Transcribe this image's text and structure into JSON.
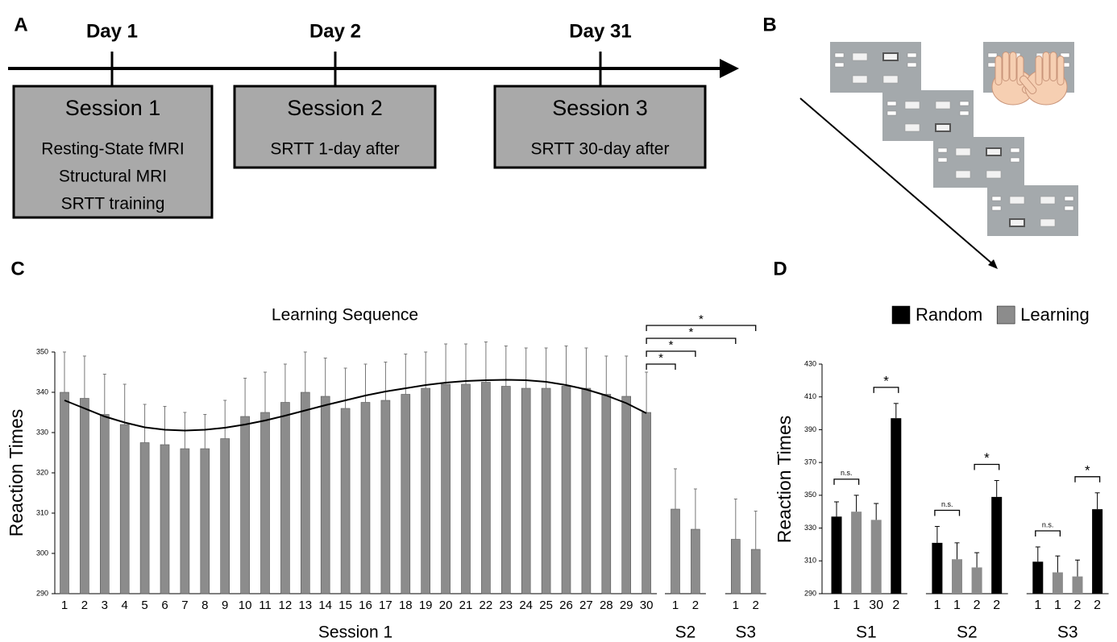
{
  "panel_labels": [
    "A",
    "B",
    "C",
    "D"
  ],
  "timeline": {
    "days": [
      "Day 1",
      "Day 2",
      "Day 31"
    ],
    "sessions": [
      {
        "title": "Session 1",
        "lines": [
          "Resting-State fMRI",
          "Structural MRI",
          "SRTT training"
        ]
      },
      {
        "title": "Session 2",
        "lines": [
          "SRTT 1-day after"
        ]
      },
      {
        "title": "Session 3",
        "lines": [
          "SRTT 30-day after"
        ]
      }
    ]
  },
  "chart_data": [
    {
      "type": "bar",
      "title": "Learning Sequence",
      "y_label": "Reaction Times",
      "categories": [
        "1",
        "2",
        "3",
        "4",
        "5",
        "6",
        "7",
        "8",
        "9",
        "10",
        "11",
        "12",
        "13",
        "14",
        "15",
        "16",
        "17",
        "18",
        "19",
        "20",
        "21",
        "22",
        "23",
        "24",
        "25",
        "26",
        "27",
        "28",
        "29",
        "30",
        "1",
        "2",
        "1",
        "2"
      ],
      "groups": [
        "Session 1",
        "S2",
        "S3"
      ],
      "values": [
        340,
        338.5,
        334.5,
        332,
        327.5,
        327,
        326,
        326,
        328.5,
        334,
        335,
        337.5,
        340,
        339,
        336,
        337.5,
        338,
        339.5,
        341,
        342,
        342,
        342.5,
        341.5,
        341,
        341,
        341.5,
        341,
        339.5,
        339,
        335,
        311,
        306,
        303.5,
        301
      ],
      "errors": [
        10,
        10.5,
        10,
        10,
        9.5,
        9.5,
        9,
        8.5,
        9.5,
        9.5,
        10,
        9.5,
        10,
        9.5,
        10,
        9.5,
        9.5,
        10,
        9,
        10,
        10,
        10,
        10,
        10,
        10,
        10,
        10,
        9.5,
        10,
        10,
        10,
        10,
        10,
        9.5
      ],
      "trend": [
        338,
        336,
        334,
        332.5,
        331.3,
        330.7,
        330.5,
        330.7,
        331.2,
        332,
        333,
        334.2,
        335.5,
        336.8,
        338,
        339.2,
        340.2,
        341,
        341.8,
        342.4,
        342.8,
        343,
        343.1,
        343,
        342.6,
        341.8,
        340.7,
        339.2,
        337.3,
        334.8
      ],
      "color": "#8c8c8c",
      "significance_labels": [
        "*",
        "*",
        "*",
        "*"
      ],
      "ylim": [
        290,
        350
      ],
      "yticks": [
        290,
        300,
        310,
        320,
        330,
        340,
        350
      ],
      "grid": false
    },
    {
      "type": "grouped-bar",
      "y_label": "Reaction Times",
      "categories": [
        "1",
        "1",
        "30",
        "2",
        "1",
        "1",
        "2",
        "2",
        "1",
        "1",
        "2",
        "2"
      ],
      "groups": [
        "S1",
        "S2",
        "S3"
      ],
      "series": [
        {
          "name": "Random",
          "color": "#000000",
          "values": [
            337,
            null,
            null,
            397,
            321,
            null,
            null,
            349,
            309.5,
            null,
            null,
            341.5
          ],
          "errors": [
            9,
            null,
            null,
            9,
            10,
            null,
            null,
            10,
            9,
            null,
            null,
            10
          ]
        },
        {
          "name": "Learning",
          "color": "#8c8c8c",
          "values": [
            null,
            340,
            335,
            null,
            null,
            311,
            306,
            null,
            null,
            303,
            300.5,
            null
          ],
          "errors": [
            null,
            10,
            10,
            null,
            null,
            10,
            9,
            null,
            null,
            10,
            10,
            null
          ]
        }
      ],
      "significance_labels": [
        "n.s.",
        "*",
        "n.s.",
        "*",
        "n.s.",
        "*"
      ],
      "legend": "top-right",
      "ylim": [
        290,
        430
      ],
      "yticks": [
        290,
        310,
        330,
        350,
        370,
        390,
        410,
        430
      ],
      "grid": false
    }
  ]
}
